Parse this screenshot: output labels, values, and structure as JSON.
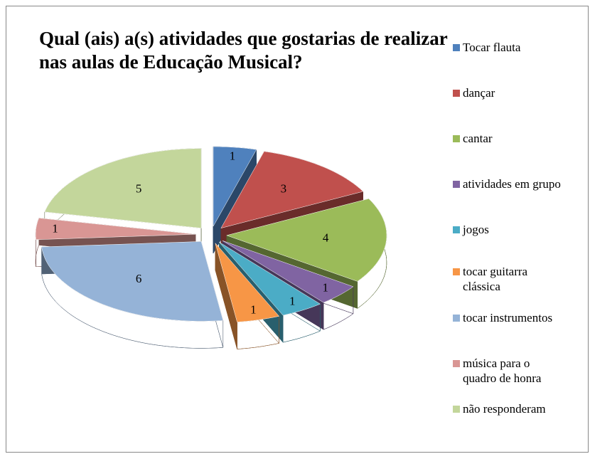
{
  "chart_data": {
    "type": "pie3d",
    "title": "Qual (ais) a(s) atividades que gostarias de realizar nas aulas de Educação Musical?",
    "categories": [
      "Tocar flauta",
      "dançar",
      "cantar",
      "atividades em grupo",
      "jogos",
      "tocar guitarra clássica",
      "tocar instrumentos",
      "música para o quadro de honra",
      "não responderam"
    ],
    "values": [
      1,
      3,
      4,
      1,
      1,
      1,
      6,
      1,
      5
    ],
    "colors": [
      "#4f81bd",
      "#c0504d",
      "#9bbb59",
      "#8064a2",
      "#4bacc6",
      "#f79646",
      "#95b3d7",
      "#d99694",
      "#c3d69b"
    ],
    "legend": "right"
  }
}
